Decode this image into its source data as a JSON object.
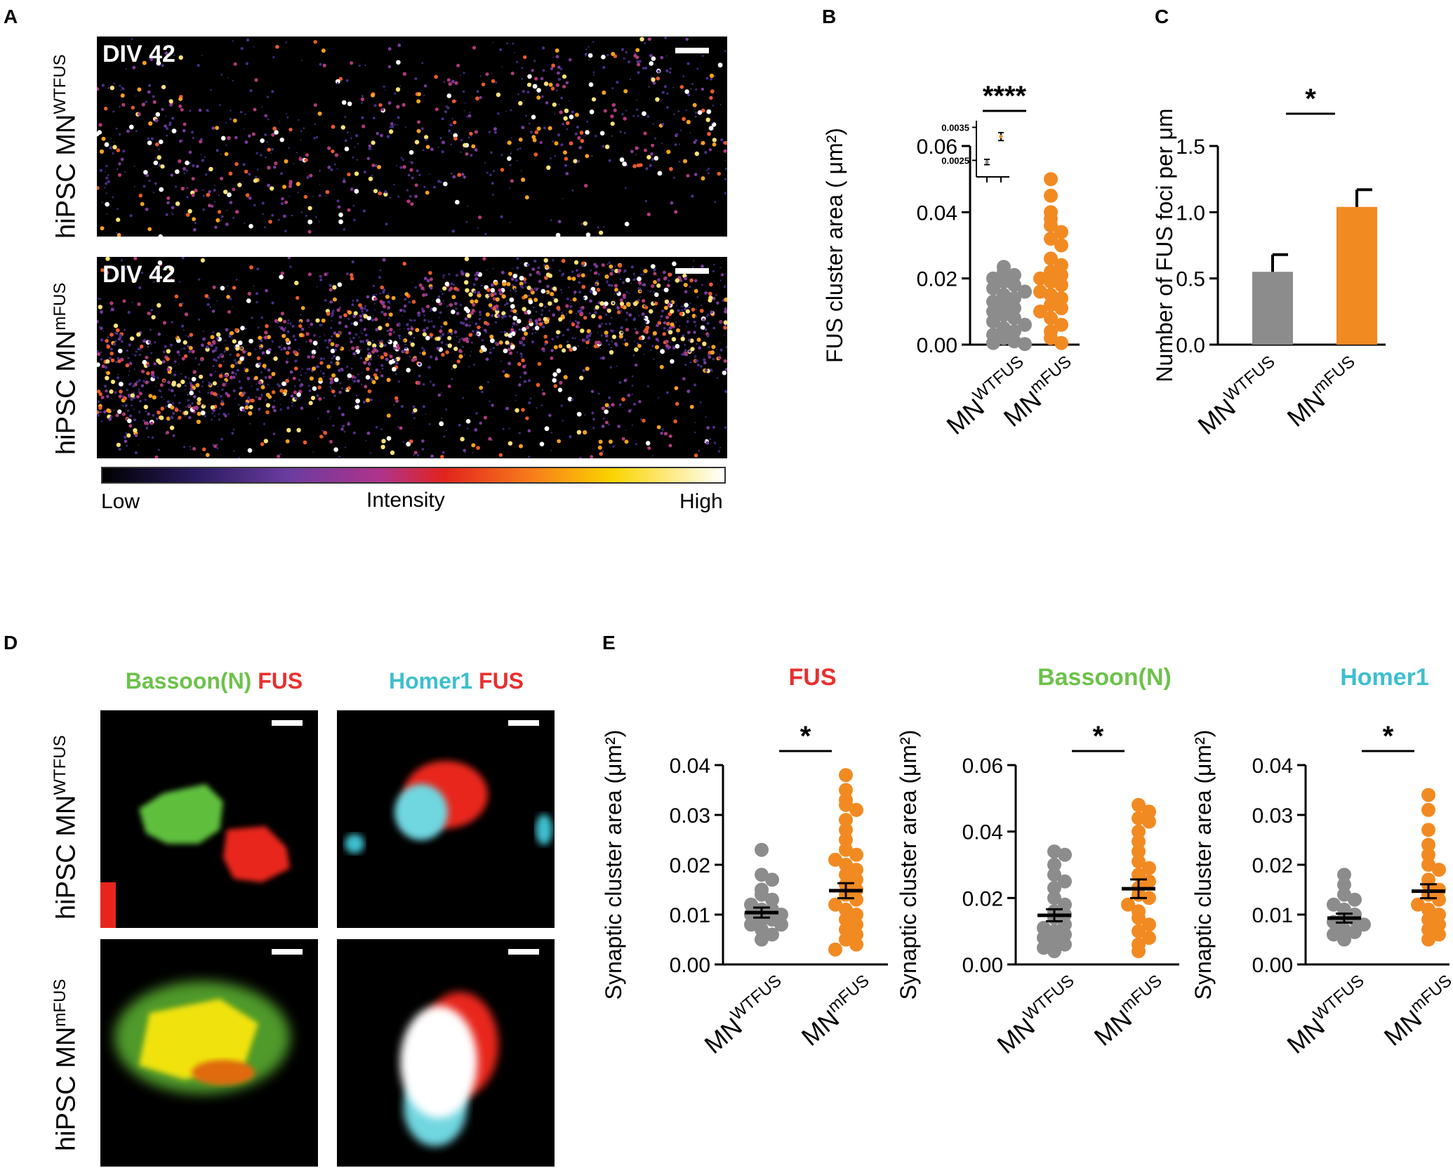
{
  "panel_letters": {
    "a": "A",
    "b": "B",
    "c": "C",
    "d": "D",
    "e": "E"
  },
  "panel_a": {
    "row_labels": [
      {
        "base": "hiPSC MN",
        "sup": "WTFUS"
      },
      {
        "base": "hiPSC MN",
        "sup": "mFUS"
      }
    ],
    "image_label": "DIV 42",
    "colorbar": {
      "low": "Low",
      "mid": "Intensity",
      "high": "High"
    }
  },
  "panel_d": {
    "col_titles": [
      {
        "a": "Bassoon(N)",
        "a_color": "#6cc24a",
        "b": "FUS",
        "b_color": "#e8302e"
      },
      {
        "a": "Homer1",
        "a_color": "#3dbfcf",
        "b": "FUS",
        "b_color": "#e8302e"
      }
    ],
    "row_labels": [
      {
        "base": "hiPSC MN",
        "sup": "WTFUS"
      },
      {
        "base": "hiPSC MN",
        "sup": "mFUS"
      }
    ]
  },
  "colors": {
    "wt": "#8c8c8c",
    "mut": "#f28a22",
    "fus": "#e8302e",
    "bassoon": "#6cc24a",
    "homer": "#3dbfcf"
  },
  "chart_data": [
    {
      "id": "B",
      "type": "scatter",
      "ylabel": "FUS cluster area ( μm²)",
      "ylim": [
        0,
        0.06
      ],
      "yticks": [
        "0.00",
        "0.02",
        "0.04",
        "0.06"
      ],
      "categories": [
        {
          "base": "MN",
          "sup": "WTFUS"
        },
        {
          "base": "MN",
          "sup": "mFUS"
        }
      ],
      "series": [
        {
          "values": [
            0.0235,
            0.022,
            0.021,
            0.02,
            0.019,
            0.018,
            0.017,
            0.016,
            0.015,
            0.014,
            0.013,
            0.012,
            0.011,
            0.01,
            0.009,
            0.008,
            0.007,
            0.006,
            0.005,
            0.004,
            0.003,
            0.002,
            0.001,
            0.0005,
            0.0002
          ]
        },
        {
          "values": [
            0.05,
            0.045,
            0.04,
            0.038,
            0.036,
            0.034,
            0.032,
            0.03,
            0.026,
            0.024,
            0.022,
            0.021,
            0.02,
            0.019,
            0.018,
            0.016,
            0.015,
            0.014,
            0.012,
            0.011,
            0.01,
            0.008,
            0.006,
            0.004,
            0.002,
            0.0005
          ]
        }
      ],
      "significance": "****",
      "inset": {
        "yticks": [
          "0.0025",
          "0.0035"
        ],
        "ylim": [
          0.002,
          0.0037
        ],
        "means": [
          0.00245,
          0.00322
        ],
        "errors": [
          8e-05,
          0.00012
        ]
      }
    },
    {
      "id": "C",
      "type": "bar",
      "ylabel": "Number of FUS foci per μm",
      "ylim": [
        0,
        1.5
      ],
      "yticks": [
        "0.0",
        "0.5",
        "1.0",
        "1.5"
      ],
      "categories": [
        {
          "base": "MN",
          "sup": "WTFUS"
        },
        {
          "base": "MN",
          "sup": "mFUS"
        }
      ],
      "values": [
        0.55,
        1.04
      ],
      "errors": [
        0.13,
        0.13
      ],
      "significance": "*"
    },
    {
      "id": "E1",
      "type": "scatter",
      "title": "FUS",
      "ylabel": "Synaptic cluster area (μm²)",
      "ylim": [
        0,
        0.04
      ],
      "yticks": [
        "0.00",
        "0.01",
        "0.02",
        "0.03",
        "0.04"
      ],
      "categories": [
        {
          "base": "MN",
          "sup": "WTFUS"
        },
        {
          "base": "MN",
          "sup": "mFUS"
        }
      ],
      "series": [
        {
          "values": [
            0.023,
            0.018,
            0.017,
            0.015,
            0.014,
            0.013,
            0.012,
            0.011,
            0.011,
            0.01,
            0.01,
            0.009,
            0.009,
            0.008,
            0.008,
            0.007,
            0.006,
            0.005
          ],
          "mean": 0.0104,
          "sem": 0.001
        },
        {
          "values": [
            0.038,
            0.035,
            0.033,
            0.032,
            0.031,
            0.029,
            0.027,
            0.025,
            0.023,
            0.022,
            0.021,
            0.02,
            0.019,
            0.018,
            0.017,
            0.016,
            0.015,
            0.014,
            0.013,
            0.012,
            0.011,
            0.01,
            0.009,
            0.008,
            0.007,
            0.006,
            0.005,
            0.004,
            0.003
          ],
          "mean": 0.0148,
          "sem": 0.0015
        }
      ],
      "significance": "*"
    },
    {
      "id": "E2",
      "type": "scatter",
      "title": "Bassoon(N)",
      "ylabel": "Synaptic cluster area (μm²)",
      "ylim": [
        0,
        0.06
      ],
      "yticks": [
        "0.00",
        "0.02",
        "0.04",
        "0.06"
      ],
      "categories": [
        {
          "base": "MN",
          "sup": "WTFUS"
        },
        {
          "base": "MN",
          "sup": "mFUS"
        }
      ],
      "series": [
        {
          "values": [
            0.034,
            0.033,
            0.03,
            0.027,
            0.025,
            0.023,
            0.02,
            0.018,
            0.016,
            0.015,
            0.014,
            0.012,
            0.011,
            0.01,
            0.009,
            0.008,
            0.007,
            0.006,
            0.005,
            0.004
          ],
          "mean": 0.0148,
          "sem": 0.0018
        },
        {
          "values": [
            0.048,
            0.046,
            0.044,
            0.043,
            0.04,
            0.037,
            0.034,
            0.031,
            0.029,
            0.027,
            0.025,
            0.023,
            0.021,
            0.02,
            0.018,
            0.016,
            0.014,
            0.012,
            0.01,
            0.008,
            0.006,
            0.004
          ],
          "mean": 0.0228,
          "sem": 0.0028
        }
      ],
      "significance": "*"
    },
    {
      "id": "E3",
      "type": "scatter",
      "title": "Homer1",
      "ylabel": "Synaptic cluster area (μm²)",
      "ylim": [
        0,
        0.04
      ],
      "yticks": [
        "0.00",
        "0.01",
        "0.02",
        "0.03",
        "0.04"
      ],
      "categories": [
        {
          "base": "MN",
          "sup": "WTFUS"
        },
        {
          "base": "MN",
          "sup": "mFUS"
        }
      ],
      "series": [
        {
          "values": [
            0.018,
            0.016,
            0.014,
            0.013,
            0.012,
            0.011,
            0.01,
            0.0095,
            0.009,
            0.0085,
            0.008,
            0.007,
            0.0065,
            0.006,
            0.005
          ],
          "mean": 0.0093,
          "sem": 0.0009
        },
        {
          "values": [
            0.034,
            0.031,
            0.027,
            0.024,
            0.022,
            0.02,
            0.019,
            0.017,
            0.016,
            0.015,
            0.014,
            0.013,
            0.012,
            0.011,
            0.01,
            0.009,
            0.008,
            0.007,
            0.006,
            0.005
          ],
          "mean": 0.0147,
          "sem": 0.0014
        }
      ],
      "significance": "*"
    }
  ]
}
